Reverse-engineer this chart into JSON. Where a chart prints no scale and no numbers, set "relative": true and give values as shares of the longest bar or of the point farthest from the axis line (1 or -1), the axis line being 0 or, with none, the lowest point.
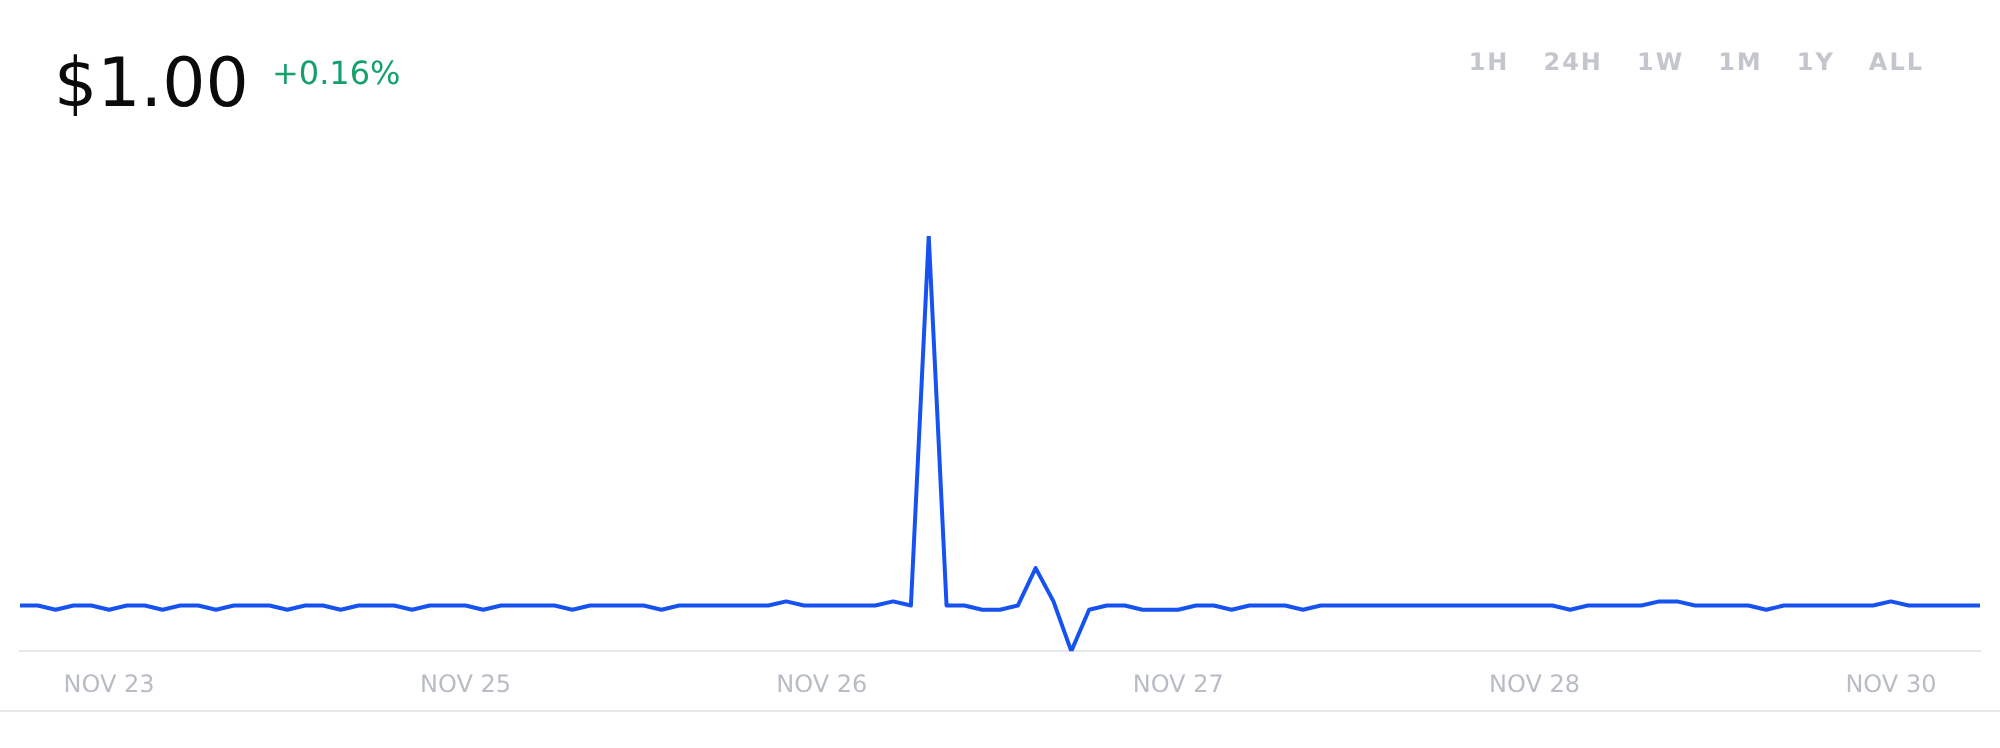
{
  "chart_data": {
    "type": "line",
    "title": "$1.00",
    "subtitle": "+0.16%",
    "annotations": [
      "1H",
      "24H",
      "1W",
      "1M",
      "1Y",
      "ALL"
    ],
    "relative": true,
    "grid": false,
    "legend": false,
    "marker": "none",
    "line_style": "solid",
    "categories": [
      null,
      null,
      null,
      null,
      null,
      "NOV 23",
      null,
      null,
      null,
      null,
      null,
      null,
      null,
      null,
      null,
      null,
      null,
      null,
      null,
      null,
      null,
      null,
      null,
      null,
      null,
      "NOV 25",
      null,
      null,
      null,
      null,
      null,
      null,
      null,
      null,
      null,
      null,
      null,
      null,
      null,
      null,
      null,
      null,
      null,
      null,
      null,
      "NOV 26",
      null,
      null,
      null,
      null,
      null,
      null,
      null,
      null,
      null,
      null,
      null,
      null,
      null,
      null,
      null,
      null,
      null,
      null,
      null,
      "NOV 27",
      null,
      null,
      null,
      null,
      null,
      null,
      null,
      null,
      null,
      null,
      null,
      null,
      null,
      null,
      null,
      null,
      null,
      null,
      null,
      "NOV 28",
      null,
      null,
      null,
      null,
      null,
      null,
      null,
      null,
      null,
      null,
      null,
      null,
      null,
      null,
      null,
      null,
      null,
      null,
      null,
      "NOV 30",
      null,
      null,
      null,
      null,
      null
    ],
    "series": [
      {
        "color": "#1652f0",
        "values": [
          0.11,
          0.11,
          0.1,
          0.11,
          0.11,
          0.1,
          0.11,
          0.11,
          0.1,
          0.11,
          0.11,
          0.1,
          0.11,
          0.11,
          0.11,
          0.1,
          0.11,
          0.11,
          0.1,
          0.11,
          0.11,
          0.11,
          0.1,
          0.11,
          0.11,
          0.11,
          0.1,
          0.11,
          0.11,
          0.11,
          0.11,
          0.1,
          0.11,
          0.11,
          0.11,
          0.11,
          0.1,
          0.11,
          0.11,
          0.11,
          0.11,
          0.11,
          0.11,
          0.12,
          0.11,
          0.11,
          0.11,
          0.11,
          0.11,
          0.12,
          0.11,
          1,
          0.11,
          0.11,
          0.1,
          0.1,
          0.11,
          0.2,
          0.12,
          0,
          0.1,
          0.11,
          0.11,
          0.1,
          0.1,
          0.1,
          0.11,
          0.11,
          0.1,
          0.11,
          0.11,
          0.11,
          0.1,
          0.11,
          0.11,
          0.11,
          0.11,
          0.11,
          0.11,
          0.11,
          0.11,
          0.11,
          0.11,
          0.11,
          0.11,
          0.11,
          0.11,
          0.1,
          0.11,
          0.11,
          0.11,
          0.11,
          0.12,
          0.12,
          0.11,
          0.11,
          0.11,
          0.11,
          0.1,
          0.11,
          0.11,
          0.11,
          0.11,
          0.11,
          0.11,
          0.12,
          0.11,
          0.11,
          0.11,
          0.11,
          0.11
        ]
      }
    ]
  }
}
